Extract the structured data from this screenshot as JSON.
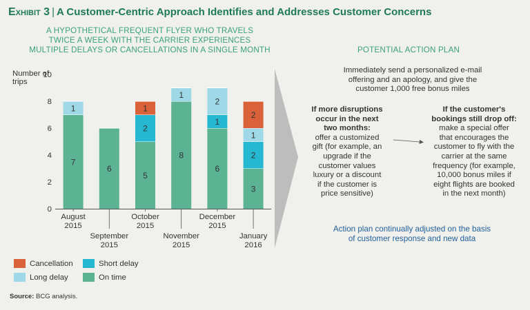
{
  "header": {
    "exhibit_label": "Exhibit 3",
    "title": "A Customer-Centric Approach Identifies and Addresses Customer Concerns"
  },
  "chart_subtitle": [
    "A hypothetical frequent flyer who travels",
    "twice a week with the carrier experiences",
    "multiple delays or cancellations in a single month"
  ],
  "chart_data": {
    "type": "bar",
    "stacked": true,
    "ylabel": "Number of trips",
    "ylim": [
      0,
      10
    ],
    "yticks": [
      0,
      2,
      4,
      6,
      8,
      10
    ],
    "categories": [
      [
        "August",
        "2015"
      ],
      [
        "September",
        "2015"
      ],
      [
        "October",
        "2015"
      ],
      [
        "November",
        "2015"
      ],
      [
        "December",
        "2015"
      ],
      [
        "January",
        "2016"
      ]
    ],
    "series": [
      {
        "name": "On time",
        "color": "#5bb394",
        "values": [
          7,
          6,
          5,
          8,
          6,
          3
        ]
      },
      {
        "name": "Short delay",
        "color": "#25b8d0",
        "values": [
          0,
          0,
          2,
          0,
          1,
          2
        ]
      },
      {
        "name": "Long delay",
        "color": "#9fd9e8",
        "values": [
          1,
          0,
          0,
          1,
          2,
          1
        ]
      },
      {
        "name": "Cancellation",
        "color": "#d9623a",
        "values": [
          0,
          0,
          1,
          0,
          0,
          2
        ]
      }
    ],
    "legend": [
      {
        "name": "Cancellation",
        "color": "#d9623a"
      },
      {
        "name": "Short delay",
        "color": "#25b8d0"
      },
      {
        "name": "Long delay",
        "color": "#9fd9e8"
      },
      {
        "name": "On time",
        "color": "#5bb394"
      }
    ]
  },
  "action_plan": {
    "heading": "Potential action plan",
    "step1": [
      "Immediately send a personalized e-mail",
      "offering and an apology, and give the",
      "customer 1,000 free bonus miles"
    ],
    "step2_title": [
      "If more disruptions",
      "occur in the next",
      "two months:"
    ],
    "step2_body": [
      "offer a customized",
      "gift (for example, an",
      "upgrade if the",
      "customer values",
      "luxury or a discount",
      "if the customer is",
      "price sensitive)"
    ],
    "step3_title": [
      "If the customer's",
      "bookings still drop off:"
    ],
    "step3_body": [
      "make a special offer",
      "that encourages the",
      "customer to fly with the",
      "carrier at the same",
      "frequency (for example,",
      "10,000 bonus miles if",
      "eight flights are booked",
      "in the next month)"
    ],
    "footer": [
      "Action plan continually adjusted on the basis",
      "of customer response and new data"
    ]
  },
  "source": {
    "label": "Source:",
    "text": "BCG analysis."
  }
}
